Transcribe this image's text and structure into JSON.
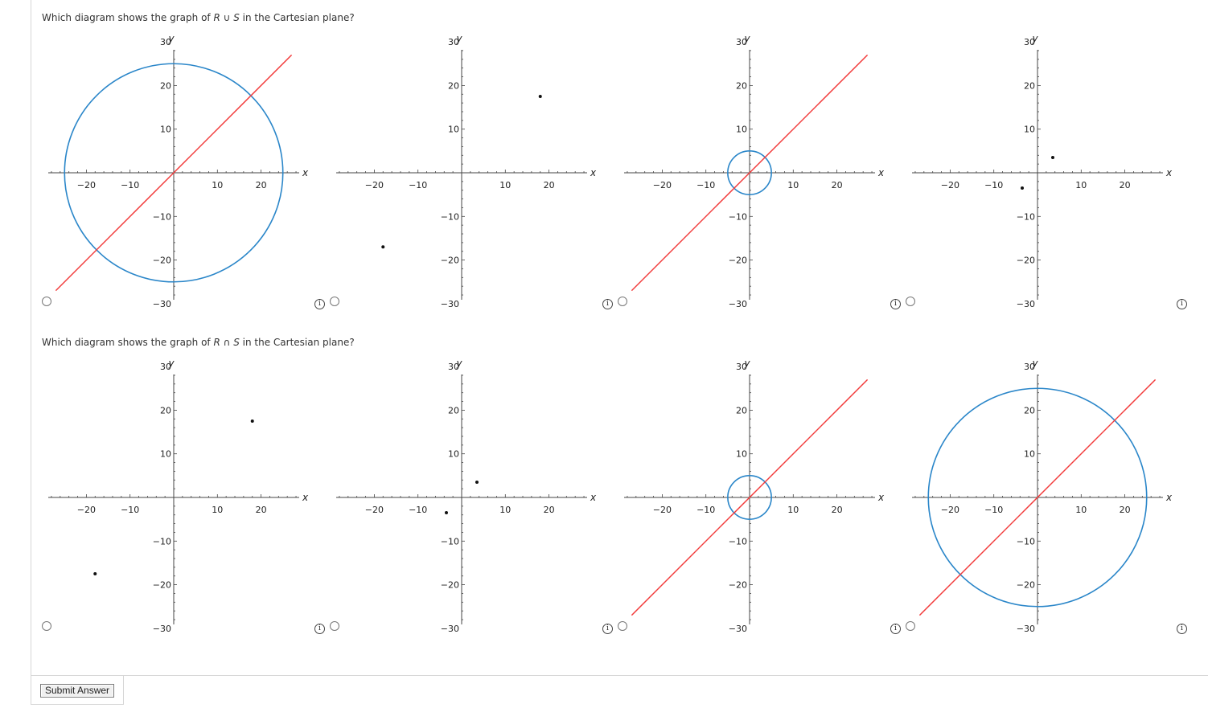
{
  "questions": [
    {
      "prefix": "Which diagram shows the graph of ",
      "set_a": "R",
      "operator": " ∪ ",
      "set_b": "S",
      "suffix": " in the Cartesian plane?",
      "options": [
        {
          "name": "union-option-a",
          "content": "circle-and-line",
          "circle_radius": 25,
          "line_slope": 1,
          "points": []
        },
        {
          "name": "union-option-b",
          "content": "two-points",
          "points": [
            [
              18,
              17.5
            ],
            [
              -18,
              -17
            ]
          ]
        },
        {
          "name": "union-option-c",
          "content": "small-circle-and-line",
          "circle_radius": 5,
          "line_slope": 1,
          "points": []
        },
        {
          "name": "union-option-d",
          "content": "two-points",
          "points": [
            [
              3.5,
              3.5
            ],
            [
              -3.5,
              -3.5
            ]
          ]
        }
      ]
    },
    {
      "prefix": "Which diagram shows the graph of ",
      "set_a": "R",
      "operator": " ∩ ",
      "set_b": "S",
      "suffix": " in the Cartesian plane?",
      "options": [
        {
          "name": "intersection-option-a",
          "content": "two-points",
          "points": [
            [
              18,
              17.5
            ],
            [
              -18,
              -17.5
            ]
          ]
        },
        {
          "name": "intersection-option-b",
          "content": "two-points",
          "points": [
            [
              3.5,
              3.5
            ],
            [
              -3.5,
              -3.5
            ]
          ]
        },
        {
          "name": "intersection-option-c",
          "content": "small-circle-and-line",
          "circle_radius": 5,
          "line_slope": 1,
          "points": []
        },
        {
          "name": "intersection-option-d",
          "content": "circle-and-line",
          "circle_radius": 25,
          "line_slope": 1,
          "points": []
        }
      ]
    }
  ],
  "axes": {
    "x_label": "x",
    "y_label": "y",
    "x_ticks": [
      "−20",
      "−10",
      "10",
      "20"
    ],
    "y_ticks": [
      "30",
      "20",
      "10",
      "−10",
      "−20",
      "−30"
    ],
    "range": [
      -30,
      30
    ]
  },
  "info_icon_glyph": "i",
  "colors": {
    "line": "#f23c3c",
    "circle": "#2a86c9",
    "point": "#111111",
    "axis": "#444444"
  },
  "submit_label": "Submit Answer"
}
